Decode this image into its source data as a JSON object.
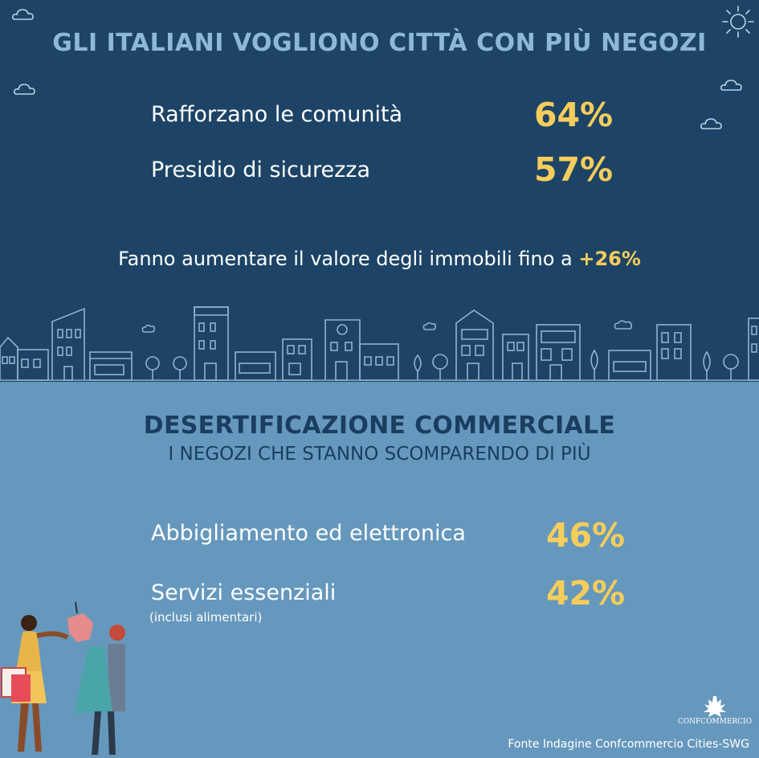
{
  "header": {
    "title": "GLI ITALIANI VOGLIONO CITTÀ CON PIÙ NEGOZI"
  },
  "top_stats": [
    {
      "label": "Rafforzano le comunità",
      "value": "64%"
    },
    {
      "label": "Presidio di sicurezza",
      "value": "57%"
    }
  ],
  "note": {
    "text": "Fanno aumentare il valore degli immobili fino a ",
    "highlight": "+26%"
  },
  "section2": {
    "title": "DESERTIFICAZIONE COMMERCIALE",
    "subtitle": "I NEGOZI CHE STANNO SCOMPARENDO DI PIÙ",
    "stats": [
      {
        "label": "Abbigliamento ed elettronica",
        "value": "46%"
      },
      {
        "label": "Servizi essenziali",
        "value": "42%"
      }
    ],
    "small_note": "(inclusi alimentari)"
  },
  "footer": {
    "source": "Fonte Indagine Confcommercio Cities-SWG",
    "logo_text": "CONFCOMMERCIO"
  },
  "colors": {
    "top_bg": "#1d4466",
    "bottom_bg": "#6698bd",
    "accent_yellow": "#f6cd5b",
    "title_light_blue": "#8fb7d8",
    "title_dark_blue": "#1a3d60"
  },
  "icons": [
    "cloud-icon",
    "sun-icon",
    "city-skyline-illustration",
    "shopping-people-illustration",
    "confcommercio-logo"
  ]
}
